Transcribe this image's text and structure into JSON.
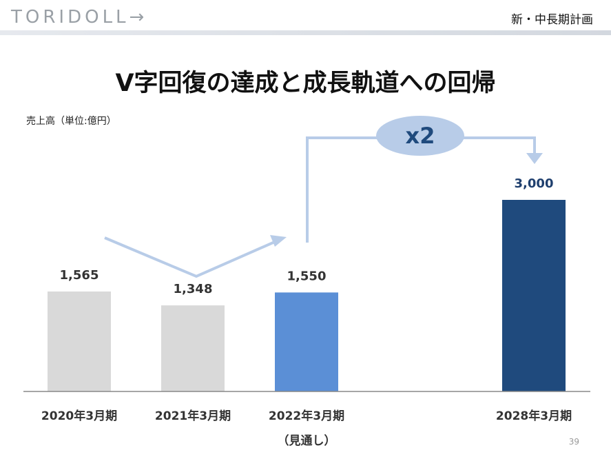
{
  "header": {
    "logo_text": "TORIDOLL→",
    "section_label": "新・中長期計画"
  },
  "slide": {
    "title": "V字回復の達成と成長軌道への回帰",
    "unit_label": "売上高（単位:億円）",
    "multiplier_label": "x2",
    "page_number": "39"
  },
  "colors": {
    "past_bar": "#d9d9d9",
    "current_bar": "#5b8fd6",
    "target_bar": "#1f4a7d",
    "arrow": "#b8cce8",
    "label_past": "#333333",
    "label_target": "#1f3f6e"
  },
  "chart_data": {
    "type": "bar",
    "title": "V字回復の達成と成長軌道への回帰",
    "ylabel": "売上高（単位:億円）",
    "categories": [
      "2020年3月期",
      "2021年3月期",
      "2022年3月期",
      "2028年3月期"
    ],
    "sublabels": [
      "",
      "",
      "（見通し）",
      ""
    ],
    "values": [
      1565,
      1348,
      1550,
      3000
    ],
    "value_labels": [
      "1,565",
      "1,348",
      "1,550",
      "3,000"
    ],
    "bar_colors": [
      "#d9d9d9",
      "#d9d9d9",
      "#5b8fd6",
      "#1f4a7d"
    ],
    "ylim": [
      0,
      3000
    ],
    "annotation": "x2",
    "grid": false,
    "legend": "none"
  }
}
